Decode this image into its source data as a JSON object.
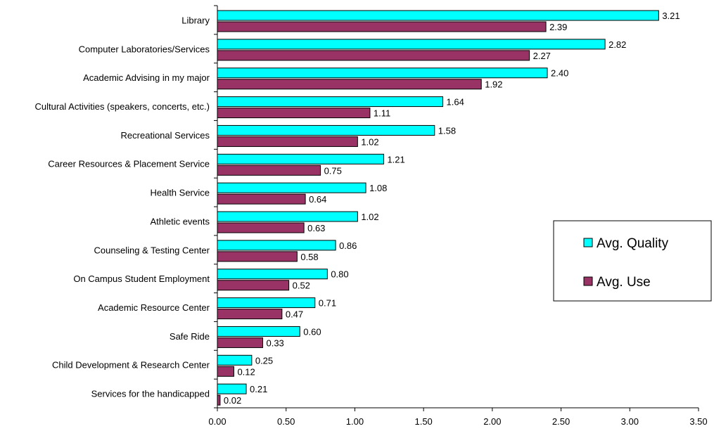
{
  "chart_data": {
    "type": "bar",
    "orientation": "horizontal",
    "categories": [
      "Library",
      "Computer Laboratories/Services",
      "Academic Advising in my major",
      "Cultural Activities (speakers, concerts, etc.)",
      "Recreational Services",
      "Career Resources & Placement Service",
      "Health Service",
      "Athletic events",
      "Counseling & Testing Center",
      "On Campus Student Employment",
      "Academic Resource Center",
      "Safe Ride",
      "Child Development & Research Center",
      "Services for the handicapped"
    ],
    "series": [
      {
        "name": "Avg. Quality",
        "color": "#00FFFF",
        "values": [
          3.21,
          2.82,
          2.4,
          1.64,
          1.58,
          1.21,
          1.08,
          1.02,
          0.86,
          0.8,
          0.71,
          0.6,
          0.25,
          0.21
        ],
        "labels": [
          "3.21",
          "2.82",
          "2.40",
          "1.64",
          "1.58",
          "1.21",
          "1.08",
          "1.02",
          "0.86",
          "0.80",
          "0.71",
          "0.60",
          "0.25",
          "0.21"
        ]
      },
      {
        "name": "Avg. Use",
        "color": "#993366",
        "values": [
          2.39,
          2.27,
          1.92,
          1.11,
          1.02,
          0.75,
          0.64,
          0.63,
          0.58,
          0.52,
          0.47,
          0.33,
          0.12,
          0.02
        ],
        "labels": [
          "2.39",
          "2.27",
          "1.92",
          "1.11",
          "1.02",
          "0.75",
          "0.64",
          "0.63",
          "0.58",
          "0.52",
          "0.47",
          "0.33",
          "0.12",
          "0.02"
        ]
      }
    ],
    "xlim": [
      0,
      3.5
    ],
    "xticks": [
      "0.00",
      "0.50",
      "1.00",
      "1.50",
      "2.00",
      "2.50",
      "3.00",
      "3.50"
    ],
    "grid": false,
    "legend_position": "right"
  }
}
